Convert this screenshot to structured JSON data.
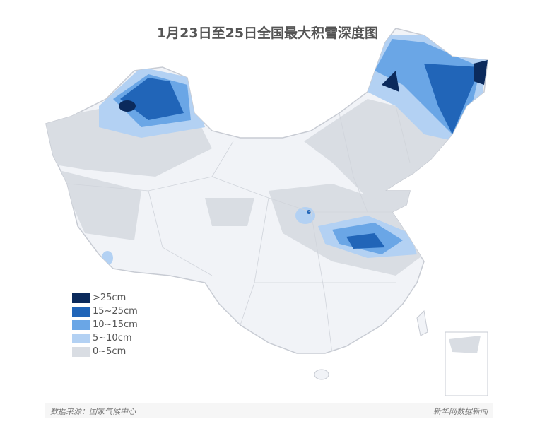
{
  "title": "1月23日至25日全国最大积雪深度图",
  "legend": [
    {
      "label": ">25cm",
      "color": "#0b2a5c"
    },
    {
      "label": "15~25cm",
      "color": "#2165b8"
    },
    {
      "label": "10~15cm",
      "color": "#6aa6e6"
    },
    {
      "label": "5~10cm",
      "color": "#b3d1f3"
    },
    {
      "label": "0~5cm",
      "color": "#d9dde3"
    }
  ],
  "footer": {
    "source": "数据来源：国家气候中心",
    "brand": "新华网数据新闻"
  },
  "colors": {
    "land": "#f1f3f7",
    "border": "#c7cbd3"
  }
}
